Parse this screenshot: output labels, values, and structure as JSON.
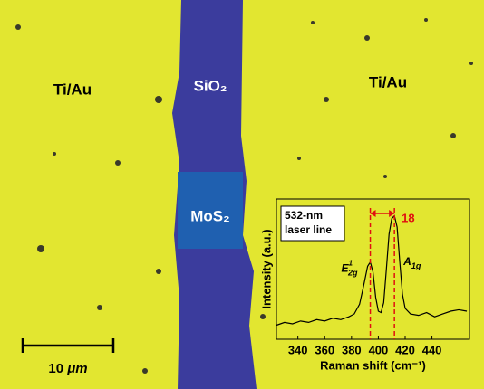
{
  "image": {
    "left_label": "Ti/Au",
    "right_label": "Ti/Au",
    "oxide_label": "SiO₂",
    "flake_label": "MoS₂",
    "scale_bar": {
      "number": "10",
      "unit": "μm"
    }
  },
  "chart_data": {
    "type": "line",
    "legend_text": [
      "532-nm",
      "laser line"
    ],
    "x_label": "Raman shift (cm⁻¹)",
    "y_label": "Intensity (a.u.)",
    "x": [
      324,
      330,
      336,
      342,
      348,
      354,
      360,
      366,
      372,
      378,
      382,
      386,
      389,
      392,
      394,
      396,
      398,
      400,
      402,
      404,
      406,
      408,
      410,
      412,
      414,
      416,
      418,
      420,
      424,
      430,
      436,
      442,
      448,
      454,
      460,
      466
    ],
    "series": [
      {
        "color": "#000000",
        "values": [
          0.1,
          0.12,
          0.11,
          0.13,
          0.12,
          0.14,
          0.13,
          0.15,
          0.14,
          0.16,
          0.18,
          0.25,
          0.38,
          0.52,
          0.55,
          0.48,
          0.3,
          0.2,
          0.19,
          0.26,
          0.5,
          0.75,
          0.86,
          0.88,
          0.8,
          0.55,
          0.32,
          0.22,
          0.18,
          0.17,
          0.19,
          0.16,
          0.18,
          0.2,
          0.21,
          0.2
        ]
      }
    ],
    "xlim": [
      324,
      468
    ],
    "ylim": [
      0,
      1
    ],
    "xticks": [
      340,
      360,
      380,
      400,
      420,
      440
    ],
    "peak_lines": [
      394,
      412
    ],
    "peak_line_color": "#e01010",
    "difference_label": "18",
    "peak_labels": [
      {
        "base": "E",
        "sup": "1",
        "sub": "2g"
      },
      {
        "base": "A",
        "sub": "1g"
      }
    ]
  }
}
